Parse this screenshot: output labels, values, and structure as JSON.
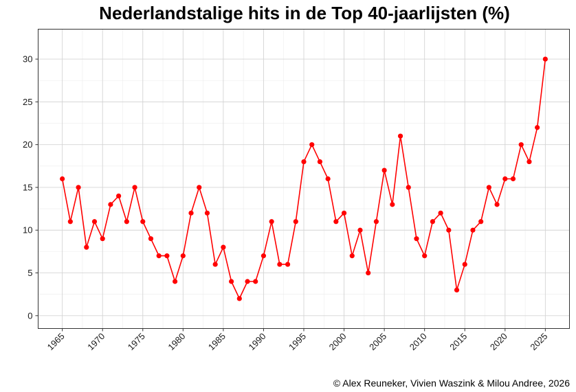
{
  "chart_data": {
    "type": "line",
    "title": "Nederlandstalige hits in de Top 40-jaarlijsten (%)",
    "xlabel": "",
    "ylabel": "",
    "xlim": [
      1962,
      2028
    ],
    "ylim": [
      -1.5,
      33.5
    ],
    "x_ticks": [
      1965,
      1970,
      1975,
      1980,
      1985,
      1990,
      1995,
      2000,
      2005,
      2010,
      2015,
      2020,
      2025
    ],
    "y_ticks": [
      0,
      5,
      10,
      15,
      20,
      25,
      30
    ],
    "grid": true,
    "series": [
      {
        "color": "#ff0000",
        "x": [
          1965,
          1966,
          1967,
          1968,
          1969,
          1970,
          1971,
          1972,
          1973,
          1974,
          1975,
          1976,
          1977,
          1978,
          1979,
          1980,
          1981,
          1982,
          1983,
          1984,
          1985,
          1986,
          1987,
          1988,
          1989,
          1990,
          1991,
          1992,
          1993,
          1994,
          1995,
          1996,
          1997,
          1998,
          1999,
          2000,
          2001,
          2002,
          2003,
          2004,
          2005,
          2006,
          2007,
          2008,
          2009,
          2010,
          2011,
          2012,
          2013,
          2014,
          2015,
          2016,
          2017,
          2018,
          2019,
          2020,
          2021,
          2022,
          2023,
          2024,
          2025
        ],
        "values": [
          16,
          11,
          15,
          8,
          11,
          9,
          13,
          14,
          11,
          15,
          11,
          9,
          7,
          7,
          4,
          7,
          12,
          15,
          12,
          6,
          8,
          4,
          2,
          4,
          4,
          7,
          11,
          6,
          6,
          11,
          18,
          20,
          18,
          16,
          11,
          12,
          7,
          10,
          5,
          11,
          17,
          13,
          21,
          15,
          9,
          7,
          11,
          12,
          10,
          3,
          6,
          10,
          11,
          15,
          13,
          16,
          16,
          20,
          18,
          22,
          30
        ]
      }
    ]
  },
  "caption": "© Alex Reuneker, Vivien Waszink & Milou Andree, 2026"
}
